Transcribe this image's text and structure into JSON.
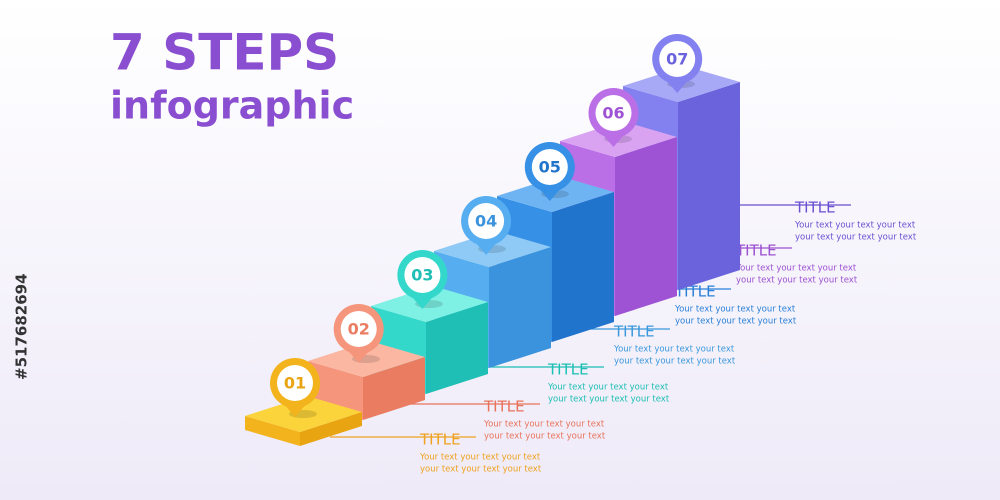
{
  "header": {
    "title": "7 STEPS",
    "subtitle": "infographic"
  },
  "stock_id": "#517682694",
  "steps": [
    {
      "number": "01",
      "title": "TITLE",
      "lines": [
        "Your text your text your text",
        "your text your text your text"
      ]
    },
    {
      "number": "02",
      "title": "TITLE",
      "lines": [
        "Your text your text your text",
        "your text your text your text"
      ]
    },
    {
      "number": "03",
      "title": "TITLE",
      "lines": [
        "Your text your text your text",
        "your text your text your text"
      ]
    },
    {
      "number": "04",
      "title": "TITLE",
      "lines": [
        "Your text your text your text",
        "your text your text your text"
      ]
    },
    {
      "number": "05",
      "title": "TITLE",
      "lines": [
        "Your text your text your text",
        "your text your text your text"
      ]
    },
    {
      "number": "06",
      "title": "TITLE",
      "lines": [
        "Your text your text your text",
        "your text your text your text"
      ]
    },
    {
      "number": "07",
      "title": "TITLE",
      "lines": [
        "Your text your text your text",
        "your text your text your text"
      ]
    }
  ]
}
